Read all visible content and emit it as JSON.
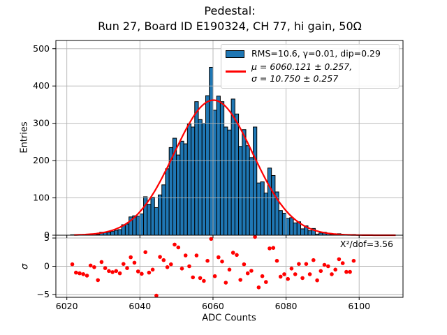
{
  "title": {
    "line1": "Pedestal:",
    "line2": "Run 27, Board ID E190324, CH 77, hi gain, 50Ω"
  },
  "legend": {
    "hist_label": "RMS=10.6, γ=0.01, dip=0.29",
    "fit_label_line1": "μ = 6060.121 ± 0.257,",
    "fit_label_line2": "σ = 10.750 ± 0.257"
  },
  "annotation": "X²/dof=3.56",
  "colors": {
    "bar_fill": "#1f77b4",
    "bar_edge": "#000000",
    "fit_line": "#ff0000",
    "residual_dot": "#ff0000",
    "grid": "#b2b2b2",
    "axis": "#000000",
    "legend_border": "#cccccc"
  },
  "chart_data": [
    {
      "type": "bar",
      "name": "pedestal-histogram",
      "title": "Pedestal: Run 27, Board ID E190324, CH 77, hi gain, 50Ω",
      "xlabel": "ADC Counts",
      "ylabel": "Entries",
      "grid": true,
      "xlim": [
        6017,
        6112
      ],
      "ylim": [
        0,
        522
      ],
      "xticks": {
        "values": [
          6020,
          6040,
          6060,
          6080,
          6100
        ],
        "labels": [
          "6020",
          "6040",
          "6060",
          "6080",
          "6100"
        ]
      },
      "yticks": {
        "values": [
          0,
          100,
          200,
          300,
          400,
          500
        ],
        "labels": [
          "0",
          "100",
          "200",
          "300",
          "400",
          "500"
        ]
      },
      "bin_start": 6021,
      "bin_width": 1,
      "counts": [
        1,
        1,
        1,
        1,
        1,
        3,
        3,
        2,
        8,
        7,
        8,
        10,
        13,
        15,
        28,
        30,
        49,
        52,
        51,
        57,
        103,
        83,
        102,
        74,
        108,
        135,
        178,
        235,
        260,
        215,
        252,
        245,
        298,
        290,
        358,
        310,
        300,
        374,
        450,
        335,
        373,
        358,
        290,
        282,
        365,
        325,
        238,
        283,
        240,
        208,
        290,
        140,
        143,
        113,
        180,
        160,
        116,
        66,
        59,
        45,
        47,
        33,
        36,
        17,
        25,
        12,
        18,
        3,
        6,
        8,
        5,
        2,
        2,
        4,
        2,
        1,
        1,
        2
      ],
      "overlay_fit": {
        "type": "line",
        "name": "gaussian-fit",
        "amplitude": 362,
        "mu": 6060.121,
        "sigma": 10.75,
        "x_range": [
          6022,
          6110
        ]
      },
      "legend_entries": [
        "RMS=10.6, γ=0.01, dip=0.29",
        "μ = 6060.121 ± 0.257, σ = 10.750 ± 0.257"
      ],
      "legend_position": "upper right"
    },
    {
      "type": "scatter",
      "name": "fit-residuals",
      "xlabel": "ADC Counts",
      "ylabel": "σ",
      "grid": true,
      "xlim": [
        6017,
        6112
      ],
      "ylim": [
        -5.5,
        5.5
      ],
      "yticks": {
        "values": [
          5,
          0,
          -5
        ],
        "labels": [
          "5",
          "0",
          "−5"
        ]
      },
      "annotation": "X²/dof=3.56",
      "points": [
        [
          6021.5,
          0.34
        ],
        [
          6022.5,
          -1.13
        ],
        [
          6023.5,
          -1.25
        ],
        [
          6024.5,
          -1.4
        ],
        [
          6025.5,
          -1.66
        ],
        [
          6026.5,
          0.13
        ],
        [
          6027.5,
          -0.16
        ],
        [
          6028.5,
          -2.46
        ],
        [
          6029.5,
          0.75
        ],
        [
          6030.5,
          -0.33
        ],
        [
          6031.5,
          -0.84
        ],
        [
          6032.5,
          -1.04
        ],
        [
          6033.5,
          -0.84
        ],
        [
          6034.5,
          -1.25
        ],
        [
          6035.5,
          0.41
        ],
        [
          6036.5,
          -0.33
        ],
        [
          6037.5,
          1.59
        ],
        [
          6038.5,
          0.63
        ],
        [
          6039.5,
          -0.91
        ],
        [
          6040.5,
          -1.34
        ],
        [
          6041.5,
          2.5
        ],
        [
          6042.5,
          -1.13
        ],
        [
          6043.5,
          -0.59
        ],
        [
          6044.5,
          -5.2
        ],
        [
          6045.5,
          1.66
        ],
        [
          6046.5,
          1.09
        ],
        [
          6047.5,
          -0.16
        ],
        [
          6048.5,
          0.34
        ],
        [
          6049.5,
          3.84
        ],
        [
          6050.5,
          3.34
        ],
        [
          6051.5,
          -0.41
        ],
        [
          6052.5,
          1.91
        ],
        [
          6053.5,
          0.0
        ],
        [
          6054.5,
          -1.96
        ],
        [
          6055.5,
          1.91
        ],
        [
          6056.5,
          -2.09
        ],
        [
          6057.5,
          -2.59
        ],
        [
          6058.5,
          0.96
        ],
        [
          6059.5,
          4.84
        ],
        [
          6060.5,
          -1.75
        ],
        [
          6061.5,
          1.59
        ],
        [
          6062.5,
          0.84
        ],
        [
          6063.5,
          -2.91
        ],
        [
          6064.5,
          -0.59
        ],
        [
          6065.5,
          2.4
        ],
        [
          6066.5,
          2.0
        ],
        [
          6067.5,
          -2.41
        ],
        [
          6068.5,
          0.34
        ],
        [
          6069.5,
          -1.25
        ],
        [
          6070.5,
          -0.8
        ],
        [
          6071.5,
          5.2
        ],
        [
          6072.5,
          -3.75
        ],
        [
          6073.5,
          -1.75
        ],
        [
          6074.5,
          -2.79
        ],
        [
          6075.5,
          3.16
        ],
        [
          6076.5,
          3.25
        ],
        [
          6077.5,
          0.96
        ],
        [
          6078.5,
          -1.84
        ],
        [
          6079.5,
          -1.41
        ],
        [
          6080.5,
          -2.25
        ],
        [
          6081.5,
          -0.41
        ],
        [
          6082.5,
          -1.41
        ],
        [
          6083.5,
          0.41
        ],
        [
          6084.5,
          -2.09
        ],
        [
          6085.5,
          0.41
        ],
        [
          6086.5,
          -1.41
        ],
        [
          6087.5,
          1.09
        ],
        [
          6088.5,
          -2.5
        ],
        [
          6089.5,
          -0.84
        ],
        [
          6090.5,
          0.25
        ],
        [
          6091.5,
          0.0
        ],
        [
          6092.5,
          -1.41
        ],
        [
          6093.5,
          -0.59
        ],
        [
          6094.5,
          1.25
        ],
        [
          6095.5,
          0.54
        ],
        [
          6096.5,
          -1.0
        ],
        [
          6097.5,
          -1.0
        ],
        [
          6098.5,
          0.96
        ]
      ]
    }
  ]
}
